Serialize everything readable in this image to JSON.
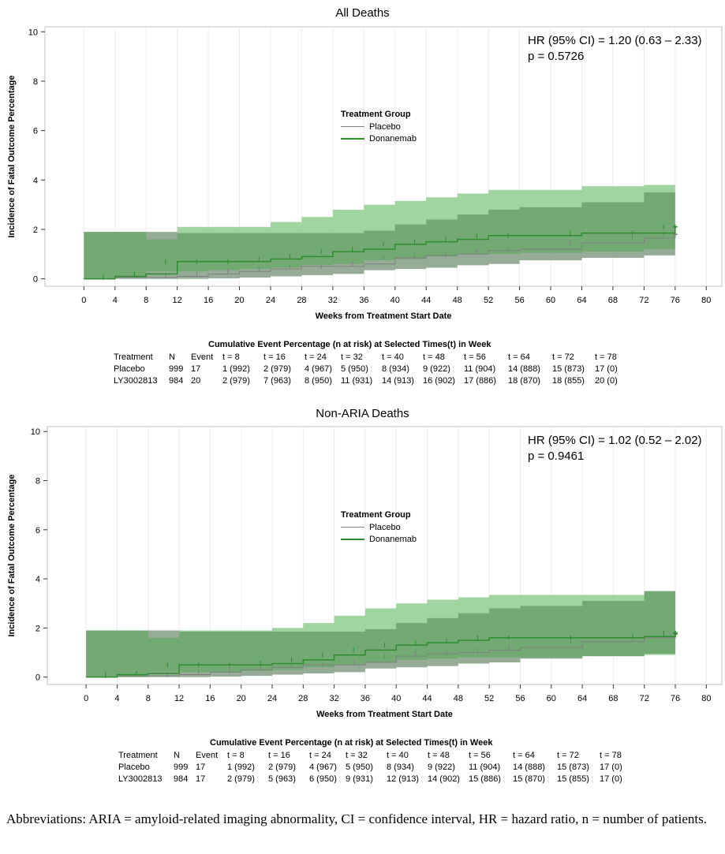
{
  "chart_data": [
    {
      "type": "line",
      "title": "All Deaths",
      "xlabel": "Weeks from Treatment Start Date",
      "ylabel": "Incidence of Fatal Outcome Percentage",
      "xlim": [
        -5,
        82
      ],
      "ylim": [
        -0.3,
        10.2
      ],
      "xticks": [
        0,
        4,
        8,
        12,
        16,
        20,
        24,
        28,
        32,
        36,
        40,
        44,
        48,
        52,
        56,
        60,
        64,
        68,
        72,
        76,
        80
      ],
      "yticks": [
        0,
        2,
        4,
        6,
        8,
        10
      ],
      "grid": "vertical",
      "legend_title": "Treatment Group",
      "hr_text": "HR (95% CI) = 1.20 (0.63 – 2.33)",
      "p_text": "p = 0.5726",
      "series": [
        {
          "name": "Placebo",
          "color": "#7f7f7f",
          "band_color": "#c8c8c8",
          "x": [
            0,
            4,
            12,
            16,
            20,
            24,
            28,
            32,
            36,
            40,
            44,
            48,
            52,
            56,
            64,
            72,
            76
          ],
          "y": [
            0,
            0.05,
            0.1,
            0.2,
            0.3,
            0.4,
            0.5,
            0.5,
            0.6,
            0.85,
            0.95,
            1.0,
            1.15,
            1.2,
            1.45,
            1.65,
            1.8
          ],
          "lower": [
            0,
            0,
            0,
            0,
            0.02,
            0.05,
            0.1,
            0.15,
            0.2,
            0.35,
            0.4,
            0.45,
            0.55,
            0.6,
            0.75,
            0.85,
            0.95
          ],
          "upper": [
            1.9,
            1.9,
            1.85,
            1.85,
            1.85,
            1.85,
            1.85,
            1.85,
            1.95,
            2.2,
            2.4,
            2.6,
            2.8,
            2.9,
            3.1,
            3.5,
            3.65
          ]
        },
        {
          "name": "Donanemab",
          "color": "#2e8b2e",
          "band_color": "#8fcc8f",
          "x": [
            0,
            4,
            8,
            12,
            16,
            20,
            24,
            28,
            32,
            36,
            40,
            44,
            48,
            52,
            56,
            64,
            72,
            76
          ],
          "y": [
            0,
            0.1,
            0.2,
            0.7,
            0.7,
            0.7,
            0.8,
            0.9,
            1.1,
            1.2,
            1.4,
            1.5,
            1.6,
            1.75,
            1.75,
            1.85,
            1.85,
            2.1
          ],
          "lower": [
            0,
            0,
            0.05,
            0.3,
            0.3,
            0.35,
            0.4,
            0.45,
            0.55,
            0.6,
            0.75,
            0.8,
            0.9,
            1.0,
            1.0,
            1.05,
            1.1,
            1.2
          ],
          "upper": [
            1.9,
            1.9,
            1.6,
            2.1,
            2.1,
            2.1,
            2.3,
            2.5,
            2.8,
            3.0,
            3.15,
            3.3,
            3.45,
            3.6,
            3.6,
            3.75,
            3.8,
            4.0
          ]
        }
      ],
      "risk_table": {
        "caption": "Cumulative Event Percentage (n at risk) at Selected Times(t) in Week",
        "headers": [
          "Treatment",
          "N",
          "Event",
          "t = 8",
          "t = 16",
          "t = 24",
          "t = 32",
          "t = 40",
          "t = 48",
          "t = 56",
          "t = 64",
          "t = 72",
          "t = 78"
        ],
        "rows": [
          [
            "Placebo",
            "999",
            "17",
            "1 (992)",
            "2 (979)",
            "4 (967)",
            "5 (950)",
            "8 (934)",
            "9 (922)",
            "11 (904)",
            "14 (888)",
            "15 (873)",
            "17 (0)"
          ],
          [
            "LY3002813",
            "984",
            "20",
            "2 (979)",
            "7 (963)",
            "8 (950)",
            "11 (931)",
            "14 (913)",
            "16 (902)",
            "17 (886)",
            "18 (870)",
            "18 (855)",
            "20 (0)"
          ]
        ]
      }
    },
    {
      "type": "line",
      "title": "Non-ARIA Deaths",
      "xlabel": "Weeks from Treatment Start Date",
      "ylabel": "Incidence of Fatal Outcome Percentage",
      "xlim": [
        -5,
        82
      ],
      "ylim": [
        -0.3,
        10.2
      ],
      "xticks": [
        0,
        4,
        8,
        12,
        16,
        20,
        24,
        28,
        32,
        36,
        40,
        44,
        48,
        52,
        56,
        60,
        64,
        68,
        72,
        76,
        80
      ],
      "yticks": [
        0,
        2,
        4,
        6,
        8,
        10
      ],
      "grid": "vertical",
      "legend_title": "Treatment Group",
      "hr_text": "HR (95% CI) = 1.02 (0.52 – 2.02)",
      "p_text": "p = 0.9461",
      "series": [
        {
          "name": "Placebo",
          "color": "#7f7f7f",
          "band_color": "#c8c8c8",
          "x": [
            0,
            4,
            12,
            16,
            20,
            24,
            28,
            32,
            36,
            40,
            44,
            48,
            52,
            56,
            64,
            72,
            76
          ],
          "y": [
            0,
            0.05,
            0.1,
            0.2,
            0.3,
            0.4,
            0.5,
            0.5,
            0.6,
            0.85,
            0.95,
            1.0,
            1.1,
            1.2,
            1.45,
            1.6,
            1.75
          ],
          "lower": [
            0,
            0,
            0,
            0,
            0.02,
            0.05,
            0.1,
            0.15,
            0.2,
            0.35,
            0.4,
            0.45,
            0.55,
            0.6,
            0.75,
            0.85,
            0.95
          ],
          "upper": [
            1.9,
            1.9,
            1.85,
            1.85,
            1.85,
            1.85,
            1.85,
            1.85,
            1.95,
            2.2,
            2.4,
            2.6,
            2.8,
            2.9,
            3.1,
            3.5,
            3.65
          ]
        },
        {
          "name": "Donanemab",
          "color": "#2e8b2e",
          "band_color": "#8fcc8f",
          "x": [
            0,
            4,
            8,
            12,
            16,
            20,
            24,
            28,
            32,
            36,
            40,
            44,
            48,
            52,
            56,
            64,
            72,
            76
          ],
          "y": [
            0,
            0.1,
            0.15,
            0.5,
            0.5,
            0.5,
            0.55,
            0.7,
            0.9,
            1.1,
            1.3,
            1.4,
            1.5,
            1.6,
            1.6,
            1.6,
            1.65,
            1.8
          ],
          "lower": [
            0,
            0,
            0,
            0.2,
            0.2,
            0.2,
            0.25,
            0.3,
            0.4,
            0.5,
            0.6,
            0.7,
            0.75,
            0.8,
            0.8,
            0.8,
            0.85,
            0.9
          ],
          "upper": [
            1.9,
            1.9,
            1.6,
            1.9,
            1.9,
            1.9,
            2.0,
            2.2,
            2.5,
            2.8,
            3.0,
            3.15,
            3.25,
            3.35,
            3.35,
            3.35,
            3.5,
            3.65
          ]
        }
      ],
      "risk_table": {
        "caption": "Cumulative Event Percentage (n at risk) at Selected Times(t) in Week",
        "headers": [
          "Treatment",
          "N",
          "Event",
          "t = 8",
          "t = 16",
          "t = 24",
          "t = 32",
          "t = 40",
          "t = 48",
          "t = 56",
          "t = 64",
          "t = 72",
          "t = 78"
        ],
        "rows": [
          [
            "Placebo",
            "999",
            "17",
            "1 (992)",
            "2 (979)",
            "4 (967)",
            "5 (950)",
            "8 (934)",
            "9 (922)",
            "11 (904)",
            "14 (888)",
            "15 (873)",
            "17 (0)"
          ],
          [
            "LY3002813",
            "984",
            "17",
            "2 (979)",
            "5 (963)",
            "6 (950)",
            "9 (931)",
            "12 (913)",
            "14 (902)",
            "15 (886)",
            "15 (870)",
            "15 (855)",
            "17 (0)"
          ]
        ]
      }
    }
  ],
  "footnote": "Abbreviations: ARIA = amyloid-related imaging abnormality, CI = confidence interval, HR = hazard ratio, n = number of patients."
}
